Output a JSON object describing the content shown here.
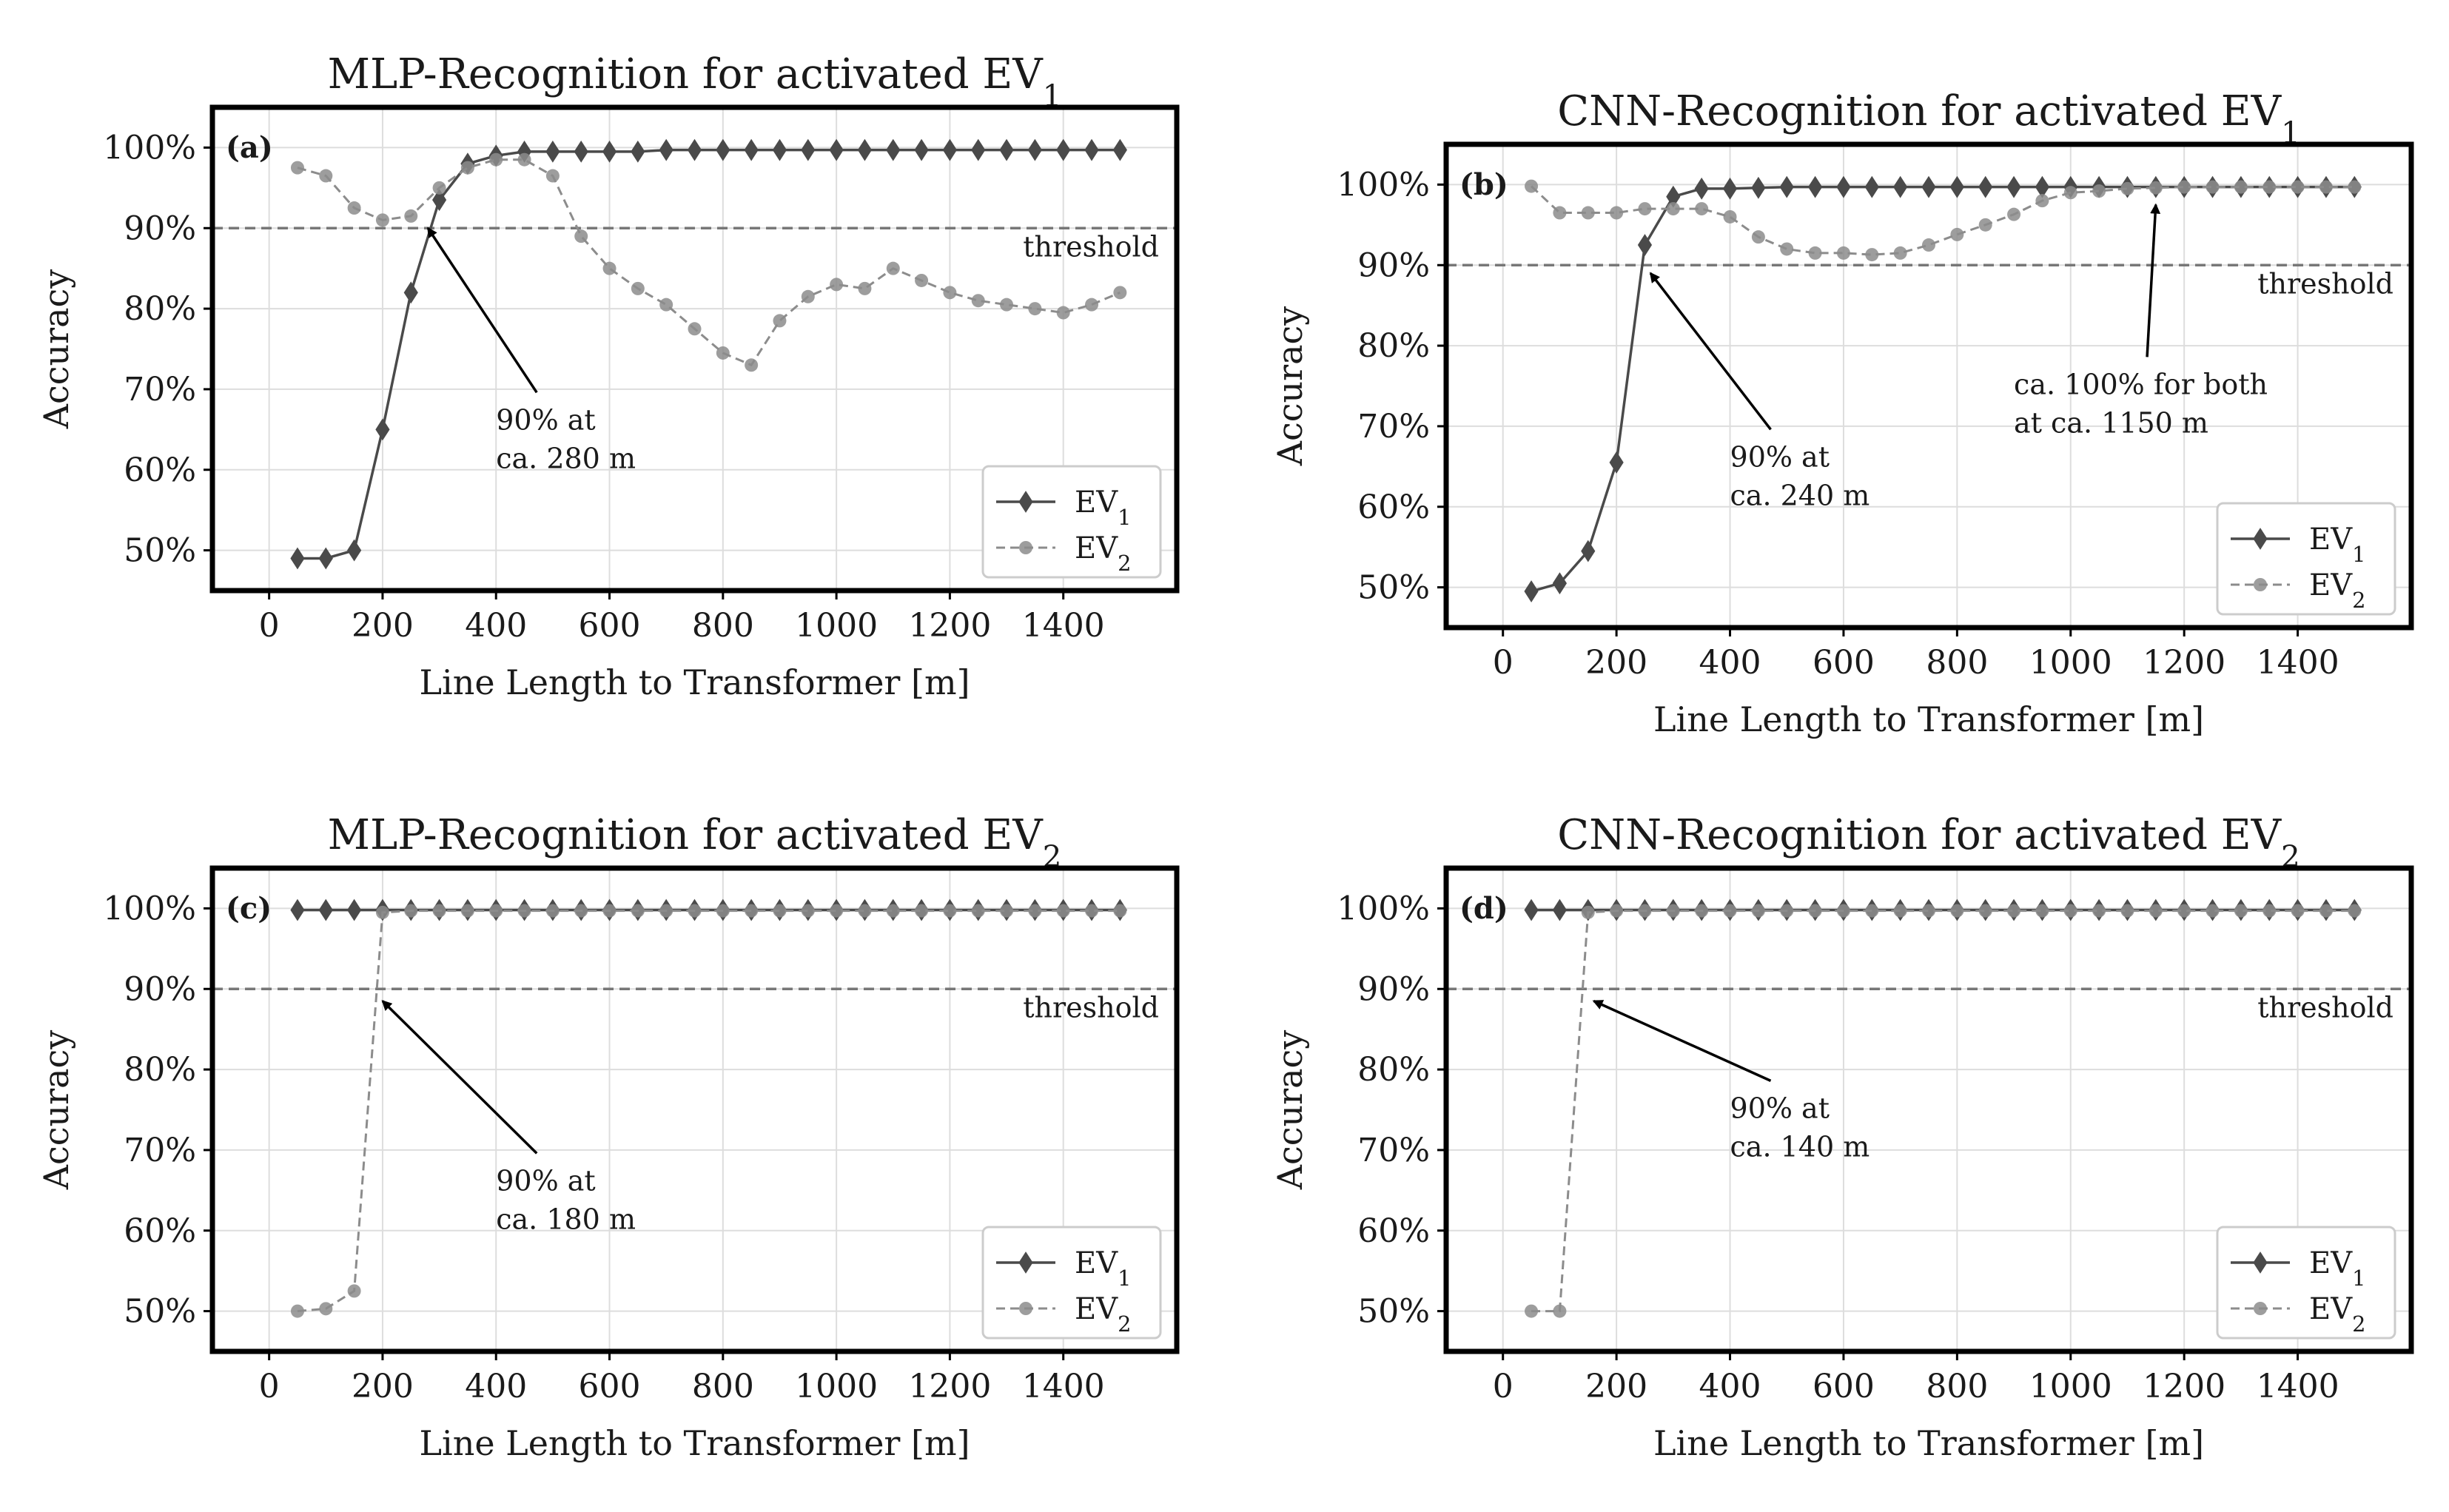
{
  "figure": {
    "colors": {
      "ev1": "#4a4a4a",
      "ev2": "#8c8c8c",
      "threshold": "#777777",
      "grid": "#dddddd",
      "frame": "#000000"
    },
    "threshold_label": "threshold",
    "legend": {
      "ev1": "EV",
      "ev1_sub": "1",
      "ev2": "EV",
      "ev2_sub": "2"
    }
  },
  "chart_data": [
    {
      "type": "line",
      "panel": "a",
      "panel_label": "(a)",
      "title": "MLP-Recognition for activated EV",
      "title_sub": "1",
      "xlabel": "Line Length to Transformer [m]",
      "ylabel": "Accuracy",
      "xlim": [
        -100,
        1600
      ],
      "ylim": [
        45,
        105
      ],
      "xticks": [
        0,
        200,
        400,
        600,
        800,
        1000,
        1200,
        1400
      ],
      "yticks": [
        50,
        60,
        70,
        80,
        90,
        100
      ],
      "ytick_labels": [
        "50%",
        "60%",
        "70%",
        "80%",
        "90%",
        "100%"
      ],
      "threshold": 90,
      "x": [
        50,
        100,
        150,
        200,
        250,
        300,
        350,
        400,
        450,
        500,
        550,
        600,
        650,
        700,
        750,
        800,
        850,
        900,
        950,
        1000,
        1050,
        1100,
        1150,
        1200,
        1250,
        1300,
        1350,
        1400,
        1450,
        1500
      ],
      "series": [
        {
          "name": "EV1",
          "values": [
            49,
            49,
            50,
            65,
            82,
            93.5,
            98,
            99,
            99.5,
            99.5,
            99.5,
            99.5,
            99.5,
            99.7,
            99.7,
            99.7,
            99.7,
            99.7,
            99.7,
            99.7,
            99.7,
            99.7,
            99.7,
            99.7,
            99.7,
            99.7,
            99.7,
            99.7,
            99.7,
            99.7
          ]
        },
        {
          "name": "EV2",
          "values": [
            97.5,
            96.5,
            92.5,
            91,
            91.5,
            95,
            97.5,
            98.5,
            98.5,
            96.5,
            89,
            85,
            82.5,
            80.5,
            77.5,
            74.5,
            73,
            78.5,
            81.5,
            83,
            82.5,
            85,
            83.5,
            82,
            81,
            80.5,
            80,
            79.5,
            80.5,
            82
          ]
        }
      ],
      "annotations": [
        {
          "line1": "90% at",
          "line2": "ca. 280 m",
          "target_x": 280,
          "target_y": 90,
          "text_x": 400,
          "text_y": 65
        }
      ]
    },
    {
      "type": "line",
      "panel": "b",
      "panel_label": "(b)",
      "title": "CNN-Recognition for activated EV",
      "title_sub": "1",
      "xlabel": "Line Length to Transformer [m]",
      "ylabel": "Accuracy",
      "xlim": [
        -100,
        1600
      ],
      "ylim": [
        45,
        105
      ],
      "xticks": [
        0,
        200,
        400,
        600,
        800,
        1000,
        1200,
        1400
      ],
      "yticks": [
        50,
        60,
        70,
        80,
        90,
        100
      ],
      "ytick_labels": [
        "50%",
        "60%",
        "70%",
        "80%",
        "90%",
        "100%"
      ],
      "threshold": 90,
      "x": [
        50,
        100,
        150,
        200,
        250,
        300,
        350,
        400,
        450,
        500,
        550,
        600,
        650,
        700,
        750,
        800,
        850,
        900,
        950,
        1000,
        1050,
        1100,
        1150,
        1200,
        1250,
        1300,
        1350,
        1400,
        1450,
        1500
      ],
      "series": [
        {
          "name": "EV1",
          "values": [
            49.5,
            50.5,
            54.5,
            65.5,
            92.5,
            98.5,
            99.5,
            99.5,
            99.6,
            99.7,
            99.7,
            99.7,
            99.7,
            99.7,
            99.7,
            99.7,
            99.7,
            99.7,
            99.7,
            99.7,
            99.7,
            99.7,
            99.7,
            99.7,
            99.7,
            99.7,
            99.7,
            99.7,
            99.7,
            99.7
          ]
        },
        {
          "name": "EV2",
          "values": [
            99.8,
            96.5,
            96.5,
            96.5,
            97,
            97,
            97,
            96,
            93.5,
            92,
            91.5,
            91.5,
            91.3,
            91.5,
            92.5,
            93.8,
            95,
            96.3,
            98,
            99,
            99.2,
            99.5,
            99.6,
            99.7,
            99.7,
            99.7,
            99.7,
            99.7,
            99.7,
            99.7
          ]
        }
      ],
      "annotations": [
        {
          "line1": "90% at",
          "line2": "ca. 240 m",
          "target_x": 260,
          "target_y": 89,
          "text_x": 400,
          "text_y": 65
        },
        {
          "line1": "ca. 100% for both",
          "line2": "at ca. 1150 m",
          "target_x": 1150,
          "target_y": 97.5,
          "text_x": 900,
          "text_y": 74
        }
      ]
    },
    {
      "type": "line",
      "panel": "c",
      "panel_label": "(c)",
      "title": "MLP-Recognition for activated EV",
      "title_sub": "2",
      "xlabel": "Line Length to Transformer [m]",
      "ylabel": "Accuracy",
      "xlim": [
        -100,
        1600
      ],
      "ylim": [
        45,
        105
      ],
      "xticks": [
        0,
        200,
        400,
        600,
        800,
        1000,
        1200,
        1400
      ],
      "yticks": [
        50,
        60,
        70,
        80,
        90,
        100
      ],
      "ytick_labels": [
        "50%",
        "60%",
        "70%",
        "80%",
        "90%",
        "100%"
      ],
      "threshold": 90,
      "x": [
        50,
        100,
        150,
        200,
        250,
        300,
        350,
        400,
        450,
        500,
        550,
        600,
        650,
        700,
        750,
        800,
        850,
        900,
        950,
        1000,
        1050,
        1100,
        1150,
        1200,
        1250,
        1300,
        1350,
        1400,
        1450,
        1500
      ],
      "series": [
        {
          "name": "EV1",
          "values": [
            99.8,
            99.8,
            99.8,
            99.8,
            99.8,
            99.8,
            99.8,
            99.8,
            99.8,
            99.8,
            99.8,
            99.8,
            99.8,
            99.8,
            99.8,
            99.8,
            99.8,
            99.8,
            99.8,
            99.8,
            99.8,
            99.8,
            99.8,
            99.8,
            99.8,
            99.8,
            99.8,
            99.8,
            99.8,
            99.8
          ]
        },
        {
          "name": "EV2",
          "values": [
            50,
            50.3,
            52.5,
            99.5,
            99.7,
            99.7,
            99.7,
            99.7,
            99.7,
            99.7,
            99.7,
            99.7,
            99.7,
            99.7,
            99.7,
            99.7,
            99.7,
            99.7,
            99.7,
            99.7,
            99.7,
            99.7,
            99.7,
            99.7,
            99.7,
            99.7,
            99.7,
            99.7,
            99.7,
            99.7
          ]
        }
      ],
      "annotations": [
        {
          "line1": "90% at",
          "line2": "ca. 180 m",
          "target_x": 200,
          "target_y": 88.5,
          "text_x": 400,
          "text_y": 65
        }
      ]
    },
    {
      "type": "line",
      "panel": "d",
      "panel_label": "(d)",
      "title": "CNN-Recognition for activated EV",
      "title_sub": "2",
      "xlabel": "Line Length to Transformer [m]",
      "ylabel": "Accuracy",
      "xlim": [
        -100,
        1600
      ],
      "ylim": [
        45,
        105
      ],
      "xticks": [
        0,
        200,
        400,
        600,
        800,
        1000,
        1200,
        1400
      ],
      "yticks": [
        50,
        60,
        70,
        80,
        90,
        100
      ],
      "ytick_labels": [
        "50%",
        "60%",
        "70%",
        "80%",
        "90%",
        "100%"
      ],
      "threshold": 90,
      "x": [
        50,
        100,
        150,
        200,
        250,
        300,
        350,
        400,
        450,
        500,
        550,
        600,
        650,
        700,
        750,
        800,
        850,
        900,
        950,
        1000,
        1050,
        1100,
        1150,
        1200,
        1250,
        1300,
        1350,
        1400,
        1450,
        1500
      ],
      "series": [
        {
          "name": "EV1",
          "values": [
            99.8,
            99.8,
            99.8,
            99.8,
            99.8,
            99.8,
            99.8,
            99.8,
            99.8,
            99.8,
            99.8,
            99.8,
            99.8,
            99.8,
            99.8,
            99.8,
            99.8,
            99.8,
            99.8,
            99.8,
            99.8,
            99.8,
            99.8,
            99.8,
            99.8,
            99.8,
            99.8,
            99.8,
            99.8,
            99.8
          ]
        },
        {
          "name": "EV2",
          "values": [
            50,
            50,
            99.5,
            99.7,
            99.7,
            99.7,
            99.7,
            99.7,
            99.7,
            99.7,
            99.7,
            99.7,
            99.7,
            99.7,
            99.7,
            99.7,
            99.7,
            99.7,
            99.7,
            99.7,
            99.7,
            99.7,
            99.7,
            99.7,
            99.7,
            99.7,
            99.7,
            99.7,
            99.7,
            99.7
          ]
        }
      ],
      "annotations": [
        {
          "line1": "90% at",
          "line2": "ca. 140 m",
          "target_x": 160,
          "target_y": 88.5,
          "text_x": 400,
          "text_y": 74
        }
      ]
    }
  ]
}
